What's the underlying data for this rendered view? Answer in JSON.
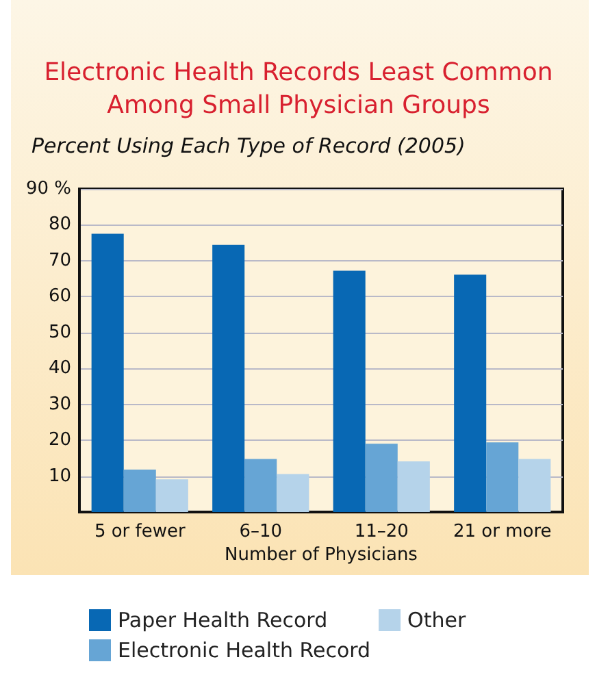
{
  "chart_data": {
    "type": "bar",
    "title": "Electronic Health Records Least Common\nAmong Small Physician Groups",
    "subtitle": "Percent Using Each Type of Record (2005)",
    "xlabel": "Number of Physicians",
    "categories": [
      "5 or fewer",
      "6–10",
      "11–20",
      "21 or more"
    ],
    "series": [
      {
        "name": "Paper Health Record",
        "color": "#0868b4",
        "values": [
          77.5,
          74.4,
          67.2,
          66.1
        ]
      },
      {
        "name": "Electronic Health Record",
        "color": "#66a5d5",
        "values": [
          11.8,
          14.8,
          19.0,
          19.4
        ]
      },
      {
        "name": "Other",
        "color": "#b5d3ea",
        "values": [
          9.1,
          10.6,
          14.1,
          14.8
        ]
      }
    ],
    "ylim": [
      0,
      90
    ],
    "yticks": [
      {
        "value": 0,
        "label": null
      },
      10,
      20,
      30,
      40,
      50,
      60,
      70,
      80,
      {
        "value": 90,
        "label": "90 %"
      }
    ],
    "grid": "y",
    "legend": "bottom"
  }
}
